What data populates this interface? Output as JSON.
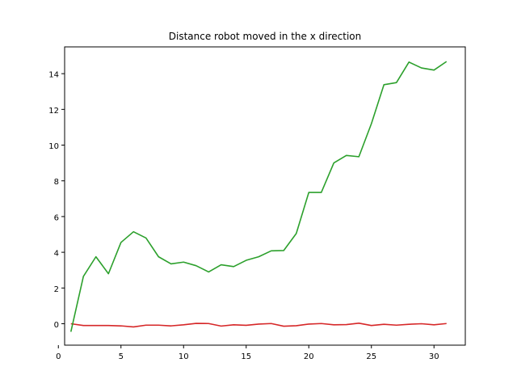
{
  "chart_data": {
    "type": "line",
    "title": "Distance robot moved in the x direction",
    "xlabel": "",
    "ylabel": "",
    "xlim": [
      0.5,
      32.5
    ],
    "ylim": [
      -1.2,
      15.5
    ],
    "xticks": [
      0,
      5,
      10,
      15,
      20,
      25,
      30
    ],
    "yticks": [
      0,
      2,
      4,
      6,
      8,
      10,
      12,
      14
    ],
    "grid": false,
    "series": [
      {
        "color": "#d62728",
        "x": [
          1,
          2,
          3,
          4,
          5,
          6,
          7,
          8,
          9,
          10,
          11,
          12,
          13,
          14,
          15,
          16,
          17,
          18,
          19,
          20,
          21,
          22,
          23,
          24,
          25,
          26,
          27,
          28,
          29,
          30,
          31
        ],
        "y": [
          0.0,
          -0.1,
          -0.1,
          -0.1,
          -0.12,
          -0.18,
          -0.08,
          -0.08,
          -0.12,
          -0.06,
          0.02,
          0.01,
          -0.13,
          -0.06,
          -0.09,
          -0.02,
          0.01,
          -0.14,
          -0.11,
          -0.02,
          0.01,
          -0.06,
          -0.05,
          0.03,
          -0.1,
          -0.03,
          -0.08,
          -0.03,
          0.0,
          -0.06,
          0.01
        ]
      },
      {
        "color": "#2ca02c",
        "x": [
          1,
          2,
          3,
          4,
          5,
          6,
          7,
          8,
          9,
          10,
          11,
          12,
          13,
          14,
          15,
          16,
          17,
          18,
          19,
          20,
          21,
          22,
          23,
          24,
          25,
          26,
          27,
          28,
          29,
          30,
          31
        ],
        "y": [
          -0.45,
          2.65,
          3.75,
          2.8,
          4.55,
          5.15,
          4.8,
          3.75,
          3.35,
          3.45,
          3.25,
          2.9,
          3.3,
          3.2,
          3.55,
          3.75,
          4.08,
          4.1,
          5.05,
          7.35,
          7.35,
          9.0,
          9.42,
          9.35,
          11.2,
          13.38,
          13.5,
          14.65,
          14.32,
          14.2,
          14.68
        ]
      }
    ]
  }
}
